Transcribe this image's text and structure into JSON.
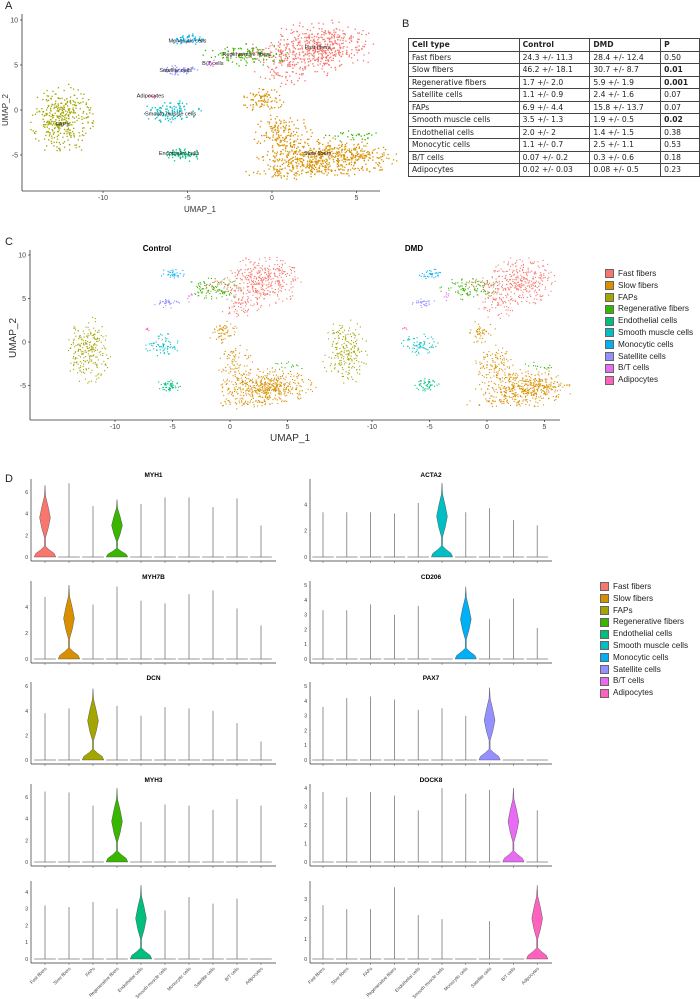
{
  "panel_labels": {
    "a": "A",
    "b": "B",
    "c": "C",
    "d": "D"
  },
  "cell_types": [
    {
      "name": "Fast fibers",
      "color": "#F8766D"
    },
    {
      "name": "Slow fibers",
      "color": "#D89000"
    },
    {
      "name": "FAPs",
      "color": "#A3A500"
    },
    {
      "name": "Regenerative fibers",
      "color": "#39B600"
    },
    {
      "name": "Endothelial cells",
      "color": "#00BF7D"
    },
    {
      "name": "Smooth muscle cells",
      "color": "#00BFC4"
    },
    {
      "name": "Monocytic cells",
      "color": "#00B0F6"
    },
    {
      "name": "Satellite cells",
      "color": "#9590FF"
    },
    {
      "name": "B/T cells",
      "color": "#E76BF3"
    },
    {
      "name": "Adipocytes",
      "color": "#FF62BC"
    }
  ],
  "table": {
    "headers": [
      "Cell type",
      "Control",
      "DMD",
      "P"
    ],
    "rows": [
      {
        "cells": [
          "Fast fibers",
          "24.3 +/- 11.3",
          "28.4 +/- 12.4",
          "0.50"
        ],
        "p_bold": false
      },
      {
        "cells": [
          "Slow fibers",
          "46.2 +/- 18.1",
          "30.7 +/- 8.7",
          "0.01"
        ],
        "p_bold": true
      },
      {
        "cells": [
          "Regenerative fibers",
          "1.7 +/- 2.0",
          "5.9 +/- 1.9",
          "0.001"
        ],
        "p_bold": true
      },
      {
        "cells": [
          "Satellite cells",
          "1.1 +/- 0.9",
          "2.4 +/- 1.6",
          "0.07"
        ],
        "p_bold": false
      },
      {
        "cells": [
          "FAPs",
          "6.9 +/- 4.4",
          "15.8 +/- 13.7",
          "0.07"
        ],
        "p_bold": false
      },
      {
        "cells": [
          "Smooth muscle cells",
          "3.5 +/- 1.3",
          "1.9 +/- 0.5",
          "0.02"
        ],
        "p_bold": true
      },
      {
        "cells": [
          "Endothelial cells",
          "2.0 +/- 2",
          "1.4 +/- 1.5",
          "0.38"
        ],
        "p_bold": false
      },
      {
        "cells": [
          "Monocytic cells",
          "1.1 +/- 0.7",
          "2.5 +/- 1.1",
          "0.53"
        ],
        "p_bold": false
      },
      {
        "cells": [
          "B/T cells",
          "0.07 +/- 0.2",
          "0.3 +/- 0.6",
          "0.18"
        ],
        "p_bold": false
      },
      {
        "cells": [
          "Adipocytes",
          "0.02 +/- 0.03",
          "0.08 +/- 0.5",
          "0.23"
        ],
        "p_bold": false
      }
    ]
  },
  "chart_data": [
    {
      "id": "umap-all",
      "type": "scatter",
      "title": "",
      "xlabel": "UMAP_1",
      "ylabel": "UMAP_2",
      "xticks": [
        -10,
        -5,
        0,
        5
      ],
      "yticks": [
        -5,
        0,
        5,
        10
      ],
      "xlim": [
        -14.5,
        6.5
      ],
      "ylim": [
        -9,
        10.5
      ],
      "clusters": [
        [
          0,
          2.8,
          7.0,
          1.5,
          1.4,
          0.22
        ],
        [
          0,
          0.8,
          4.5,
          0.9,
          0.9,
          0.04
        ],
        [
          0,
          -0.8,
          6.5,
          0.9,
          0.5,
          0.02
        ],
        [
          1,
          3.2,
          -5.2,
          1.9,
          1.0,
          0.25
        ],
        [
          1,
          0.6,
          -2.5,
          0.8,
          1.0,
          0.05
        ],
        [
          1,
          -0.6,
          1.2,
          0.6,
          0.6,
          0.03
        ],
        [
          1,
          0.8,
          -7.0,
          1.2,
          0.3,
          0.02
        ],
        [
          2,
          -12.4,
          -1.0,
          0.9,
          1.8,
          0.13
        ],
        [
          3,
          -1.5,
          6.2,
          1.2,
          0.6,
          0.05
        ],
        [
          3,
          4.8,
          -2.8,
          0.8,
          0.3,
          0.01
        ],
        [
          4,
          -5.3,
          -4.9,
          0.5,
          0.35,
          0.03
        ],
        [
          5,
          -6.0,
          -0.2,
          0.8,
          0.6,
          0.04
        ],
        [
          6,
          -5.0,
          7.9,
          0.5,
          0.3,
          0.02
        ],
        [
          7,
          -5.5,
          4.5,
          0.5,
          0.25,
          0.02
        ],
        [
          8,
          -3.6,
          5.3,
          0.15,
          0.3,
          0.004
        ],
        [
          9,
          -7.2,
          1.6,
          0.15,
          0.15,
          0.003
        ]
      ],
      "annotations": [
        {
          "text": "Fast fibers",
          "x": 2.7,
          "y": 6.8
        },
        {
          "text": "Regenerative fibers",
          "x": -1.5,
          "y": 6.0
        },
        {
          "text": "B/T cells",
          "x": -3.5,
          "y": 5.0
        },
        {
          "text": "Monocytic cells",
          "x": -5.0,
          "y": 7.5
        },
        {
          "text": "Satellite cells",
          "x": -5.7,
          "y": 4.2
        },
        {
          "text": "Adipocytes",
          "x": -7.2,
          "y": 1.4
        },
        {
          "text": "Smooth muscle cells",
          "x": -6.0,
          "y": -0.6
        },
        {
          "text": "FAPs",
          "x": -12.4,
          "y": -1.8
        },
        {
          "text": "Endothelial cells",
          "x": -5.5,
          "y": -5.0
        },
        {
          "text": "Slow fibers",
          "x": 2.7,
          "y": -5.0
        }
      ]
    },
    {
      "id": "umap-control",
      "type": "scatter",
      "title": "Control",
      "xlabel": "UMAP_1",
      "ylabel": "UMAP_2",
      "xticks": [
        -10,
        -5,
        0,
        5
      ],
      "yticks": [
        -5,
        0,
        5,
        10
      ]
    },
    {
      "id": "umap-dmd",
      "type": "scatter",
      "title": "DMD",
      "xlabel": "",
      "ylabel": "",
      "xticks": [
        -10,
        -5,
        0,
        5
      ],
      "yticks": []
    },
    {
      "id": "violins",
      "type": "violin",
      "categories": [
        "Fast fibers",
        "Slow fibers",
        "FAPs",
        "Regenerative fibers",
        "Endothelial cells",
        "Smooth muscle cells",
        "Monocytic cells",
        "Satellite cells",
        "B/T cells",
        "Adipocytes"
      ],
      "panels": [
        {
          "gene": "MYH1",
          "yticks": [
            0,
            2,
            4,
            6
          ],
          "max": [
            6.6,
            6.8,
            4.7,
            5.3,
            4.9,
            5.5,
            5.5,
            4.6,
            5.4,
            2.9
          ],
          "expressed": [
            0,
            3
          ]
        },
        {
          "gene": "ACTA2",
          "yticks": [
            0,
            2,
            4
          ],
          "max": [
            3.4,
            3.4,
            3.4,
            3.3,
            4.1,
            5.6,
            3.4,
            3.7,
            2.8,
            2.4
          ],
          "expressed": [
            5
          ]
        },
        {
          "gene": "MYH7B",
          "yticks": [
            0,
            2,
            4
          ],
          "max": [
            4.8,
            5.7,
            4.2,
            5.6,
            4.5,
            4.3,
            5.0,
            5.3,
            3.9,
            2.6
          ],
          "expressed": [
            1
          ]
        },
        {
          "gene": "CD206",
          "yticks": [
            0,
            1,
            2,
            3,
            4,
            5
          ],
          "max": [
            3.3,
            3.3,
            3.7,
            3.0,
            3.6,
            0,
            4.9,
            2.7,
            4.1,
            2.1
          ],
          "expressed": [
            6
          ]
        },
        {
          "gene": "DCN",
          "yticks": [
            0,
            2,
            4,
            6
          ],
          "max": [
            3.8,
            4.2,
            5.8,
            4.4,
            3.6,
            4.3,
            4.2,
            4.0,
            3.0,
            1.5
          ],
          "expressed": [
            2
          ]
        },
        {
          "gene": "PAX7",
          "yticks": [
            0,
            1,
            2,
            3,
            4,
            5
          ],
          "max": [
            3.6,
            4.2,
            4.3,
            4.1,
            3.4,
            3.5,
            3.0,
            4.9,
            0,
            0
          ],
          "expressed": [
            7
          ]
        },
        {
          "gene": "MYH3",
          "yticks": [
            0,
            2,
            4,
            6
          ],
          "max": [
            6.5,
            6.4,
            5.2,
            6.8,
            3.7,
            5.3,
            5.2,
            4.8,
            5.8,
            5.2
          ],
          "expressed": [
            3
          ]
        },
        {
          "gene": "DOCK8",
          "yticks": [
            0,
            1,
            2,
            3,
            4
          ],
          "max": [
            3.8,
            3.5,
            3.8,
            3.6,
            2.8,
            4.0,
            3.7,
            3.9,
            4.0,
            2.8
          ],
          "expressed": [
            8
          ]
        },
        {
          "gene": "",
          "yticks": [
            0,
            1,
            2,
            3,
            4
          ],
          "max": [
            3.2,
            3.1,
            3.4,
            3.0,
            4.4,
            2.9,
            3.7,
            3.3,
            3.6,
            0
          ],
          "expressed": [
            4
          ]
        },
        {
          "gene": "",
          "yticks": [
            0,
            1,
            2,
            3
          ],
          "max": [
            2.7,
            2.5,
            2.5,
            3.6,
            2.2,
            2.0,
            0,
            1.9,
            0,
            3.7
          ],
          "expressed": [
            9
          ]
        }
      ]
    }
  ]
}
